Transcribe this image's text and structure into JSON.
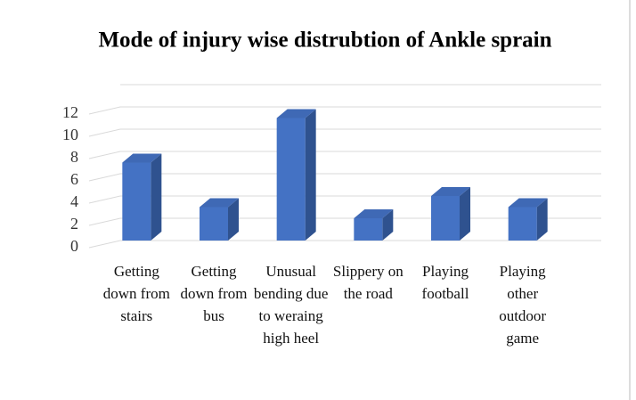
{
  "chart_data": {
    "type": "bar3d",
    "title": "Mode of injury wise distrubtion of Ankle sprain",
    "categories": [
      "Getting down from stairs",
      "Getting down from bus",
      "Unusual bending due to weraing high heel",
      "Slippery on the road",
      "Playing football",
      "Playing other outdoor game"
    ],
    "values": [
      7,
      3,
      11,
      2,
      4,
      3
    ],
    "color": "#4472c4",
    "ylim": [
      0,
      14
    ],
    "yticks": [
      0,
      2,
      4,
      6,
      8,
      10,
      12
    ],
    "grid": true
  }
}
